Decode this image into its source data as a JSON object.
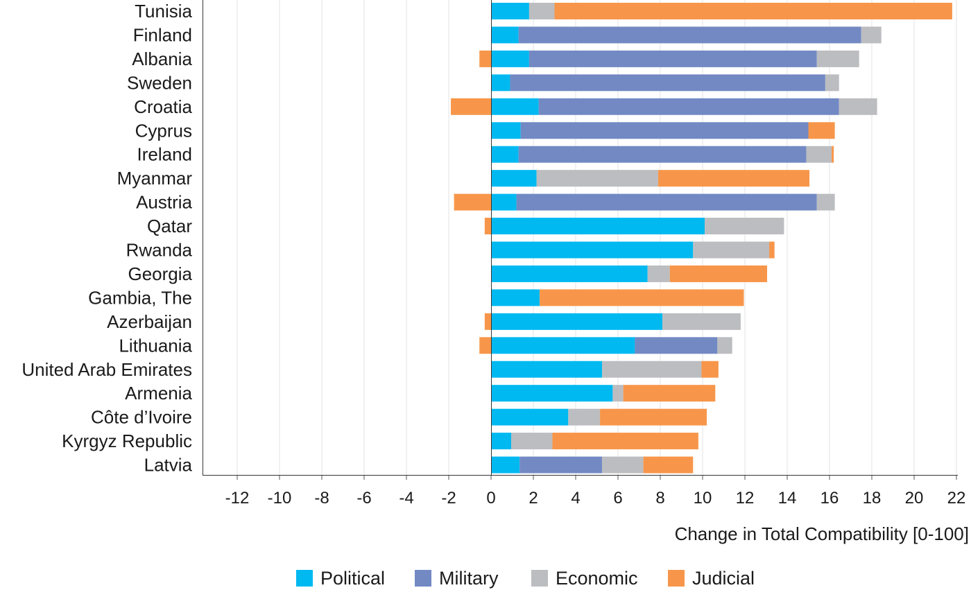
{
  "chart_data": {
    "type": "bar",
    "orientation": "horizontal",
    "stacked": true,
    "title": "",
    "xlabel": "Change in Total Compatibility [0-100]",
    "ylabel": "",
    "xlim": [
      -13.5,
      22
    ],
    "xticks": [
      -12,
      -10,
      -8,
      -6,
      -4,
      -2,
      0,
      2,
      4,
      6,
      8,
      10,
      12,
      14,
      16,
      18,
      20,
      22
    ],
    "grid": "vertical",
    "legend_position": "bottom",
    "categories": [
      "Tunisia",
      "Finland",
      "Albania",
      "Sweden",
      "Croatia",
      "Cyprus",
      "Ireland",
      "Myanmar",
      "Austria",
      "Qatar",
      "Rwanda",
      "Georgia",
      "Gambia, The",
      "Azerbaijan",
      "Lithuania",
      "United Arab Emirates",
      "Armenia",
      "Côte d’Ivoire",
      "Kyrgyz Republic",
      "Latvia"
    ],
    "series": [
      {
        "name": "Political",
        "color": "#00b9f1",
        "values": [
          1.8,
          1.3,
          1.8,
          0.9,
          2.25,
          1.4,
          1.3,
          2.15,
          1.2,
          10.1,
          9.55,
          7.4,
          2.3,
          8.1,
          6.8,
          5.25,
          5.75,
          3.65,
          0.95,
          1.35
        ]
      },
      {
        "name": "Military",
        "color": "#7289c3",
        "values": [
          0,
          16.2,
          13.6,
          14.9,
          14.2,
          13.6,
          13.6,
          0,
          14.2,
          0,
          0,
          0,
          0,
          0,
          3.9,
          0,
          0,
          0,
          0,
          3.9
        ]
      },
      {
        "name": "Economic",
        "color": "#bcbdc0",
        "values": [
          1.2,
          0.95,
          2.0,
          0.65,
          1.8,
          0,
          1.2,
          5.75,
          0.85,
          3.75,
          3.6,
          1.05,
          0,
          3.7,
          0.7,
          4.7,
          0.5,
          1.5,
          1.95,
          1.95
        ]
      },
      {
        "name": "Judicial",
        "color": "#f7964a",
        "values": [
          18.8,
          0,
          -0.55,
          0,
          -1.9,
          1.25,
          0.1,
          7.15,
          -1.75,
          -0.3,
          0.25,
          4.6,
          9.65,
          -0.3,
          -0.55,
          0.8,
          4.35,
          5.05,
          6.9,
          2.35
        ]
      }
    ]
  }
}
